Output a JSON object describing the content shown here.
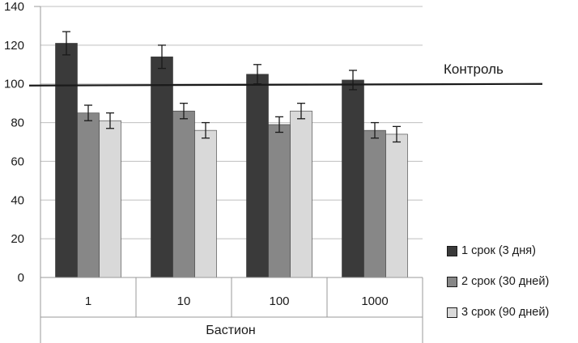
{
  "chart_data": {
    "type": "bar",
    "categories": [
      "1",
      "10",
      "100",
      "1000"
    ],
    "xlabel": "Бастион",
    "ylim": [
      0,
      140
    ],
    "yticks": [
      "0",
      "20",
      "40",
      "60",
      "80",
      "100",
      "120",
      "140"
    ],
    "grid": true,
    "legend_position": "bottom-right",
    "series": [
      {
        "name": "1 срок  (3 дня)",
        "color": "#3a3a3a",
        "values": [
          121,
          114,
          105,
          102
        ],
        "errors": [
          6,
          6,
          5,
          5
        ]
      },
      {
        "name": "2 срок (30 дней)",
        "color": "#878787",
        "values": [
          85,
          86,
          79,
          76
        ],
        "errors": [
          4,
          4,
          4,
          4
        ]
      },
      {
        "name": "3 срок (90 дней)",
        "color": "#d9d9d9",
        "values": [
          81,
          76,
          86,
          74
        ],
        "errors": [
          4,
          4,
          4,
          4
        ]
      }
    ],
    "reference_line": {
      "label": "Контроль",
      "value": 100
    }
  }
}
